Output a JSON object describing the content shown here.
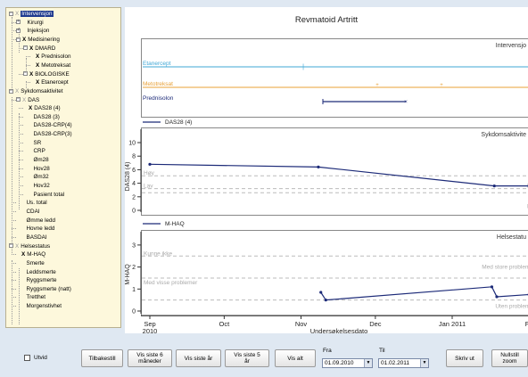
{
  "tree": [
    {
      "label": "Intervensjon",
      "mark": "grey",
      "toggle": "−",
      "selected": true
    },
    {
      "label": "Kirurgi",
      "mark": "",
      "toggle": "+"
    },
    {
      "label": "Injeksjon",
      "mark": "",
      "toggle": "+"
    },
    {
      "label": "Medisinering",
      "mark": "X",
      "toggle": "−"
    },
    {
      "label": "DMARD",
      "mark": "X",
      "toggle": "−"
    },
    {
      "label": "Prednisolon",
      "mark": "X",
      "toggle": ""
    },
    {
      "label": "Metotreksat",
      "mark": "X",
      "toggle": ""
    },
    {
      "label": "BIOLOGISKE",
      "mark": "X",
      "toggle": "−"
    },
    {
      "label": "Etanercept",
      "mark": "X",
      "toggle": ""
    },
    {
      "label": "Sykdomsaktivitet",
      "mark": "grey",
      "toggle": "−"
    },
    {
      "label": "DAS",
      "mark": "grey",
      "toggle": "−"
    },
    {
      "label": "DAS28 (4)",
      "mark": "X",
      "toggle": ""
    },
    {
      "label": "DAS28 (3)",
      "mark": "",
      "toggle": ""
    },
    {
      "label": "DAS28-CRP(4)",
      "mark": "",
      "toggle": ""
    },
    {
      "label": "DAS28-CRP(3)",
      "mark": "",
      "toggle": ""
    },
    {
      "label": "SR",
      "mark": "",
      "toggle": ""
    },
    {
      "label": "CRP",
      "mark": "",
      "toggle": ""
    },
    {
      "label": "Øm28",
      "mark": "",
      "toggle": ""
    },
    {
      "label": "Hov28",
      "mark": "",
      "toggle": ""
    },
    {
      "label": "Øm32",
      "mark": "",
      "toggle": ""
    },
    {
      "label": "Hov32",
      "mark": "",
      "toggle": ""
    },
    {
      "label": "Pasient total",
      "mark": "",
      "toggle": ""
    },
    {
      "label": "Us. total",
      "mark": "",
      "toggle": ""
    },
    {
      "label": "CDAI",
      "mark": "",
      "toggle": ""
    },
    {
      "label": "Ømme ledd",
      "mark": "",
      "toggle": ""
    },
    {
      "label": "Hovne ledd",
      "mark": "",
      "toggle": ""
    },
    {
      "label": "BASDAI",
      "mark": "",
      "toggle": ""
    },
    {
      "label": "Helsestatus",
      "mark": "grey",
      "toggle": "−"
    },
    {
      "label": "M-HAQ",
      "mark": "X",
      "toggle": ""
    },
    {
      "label": "Smerte",
      "mark": "",
      "toggle": ""
    },
    {
      "label": "Leddsmerte",
      "mark": "",
      "toggle": ""
    },
    {
      "label": "Ryggsmerte",
      "mark": "",
      "toggle": ""
    },
    {
      "label": "Ryggsmerte (natt)",
      "mark": "",
      "toggle": ""
    },
    {
      "label": "Tretthet",
      "mark": "",
      "toggle": ""
    },
    {
      "label": "Morgenstivhet",
      "mark": "",
      "toggle": ""
    }
  ],
  "chart": {
    "title": "Revmatoid Artritt",
    "panel1_title": "Intervensjo",
    "panel2_title": "Sykdomsaktivite",
    "panel3_title": "Helsestatu",
    "legend_das": "DAS28 (4)",
    "legend_mhaq": "M-HAQ",
    "axis_das": "DAS28 (4)",
    "axis_mhaq": "M-HAQ",
    "xlabel": "Undersøkelsesdato",
    "ref_das_hoy": "Høy",
    "ref_das_lav": "Lav",
    "ref_das_mode": "Mode",
    "ref_das_remis": "Remis",
    "ref_mhaq_1": "Kunne ikke",
    "ref_mhaq_2": "Med store probleme",
    "ref_mhaq_3": "Med visse problemer",
    "ref_mhaq_4": "Uten probleme",
    "meds": [
      {
        "name": "Etanercept",
        "color": "#3fa7d6"
      },
      {
        "name": "Metotreksat",
        "color": "#e8a036"
      },
      {
        "name": "Prednisolon",
        "color": "#1c2a78"
      }
    ],
    "yticks_das": [
      "10",
      "8",
      "6",
      "4",
      "2",
      "0"
    ],
    "yticks_mhaq": [
      "3",
      "2",
      "1",
      "0"
    ],
    "xticks": [
      "Sep",
      "Oct",
      "Nov",
      "Dec",
      "Jan 2011"
    ],
    "xtick_year": "2010",
    "xtick_last_partial": "F",
    "line_color": "#1c2a78"
  },
  "chart_data": {
    "type": "line",
    "title": "Revmatoid Artritt",
    "xlabel": "Undersøkelsesdato",
    "series": [
      {
        "name": "DAS28 (4)",
        "x": [
          "2010-09-01",
          "2010-11-08",
          "2011-01-18",
          "2011-02-01"
        ],
        "y": [
          6.8,
          6.4,
          3.6,
          3.6
        ]
      },
      {
        "name": "M-HAQ",
        "x": [
          "2010-11-09",
          "2010-11-11",
          "2011-01-17",
          "2011-01-19",
          "2011-02-01"
        ],
        "y": [
          0.85,
          0.5,
          1.1,
          0.65,
          0.75
        ]
      }
    ],
    "ylim_das": [
      0,
      10
    ],
    "ylim_mhaq": [
      0,
      3
    ]
  },
  "toolbar": {
    "utvid": "Utvid",
    "tilbakestill": "Tilbakestill",
    "vis6_a": "Vis siste 6",
    "vis6_b": "måneder",
    "vis_ar": "Vis siste år",
    "vis5_a": "Vis siste 5",
    "vis5_b": "år",
    "vis_alt": "Vis alt",
    "fra": "Fra",
    "fra_val": "01.09.2010",
    "til": "Til",
    "til_val": "01.02.2011",
    "skriv_ut": "Skriv ut",
    "nullstill_a": "Nullstill",
    "nullstill_b": "zoom"
  }
}
